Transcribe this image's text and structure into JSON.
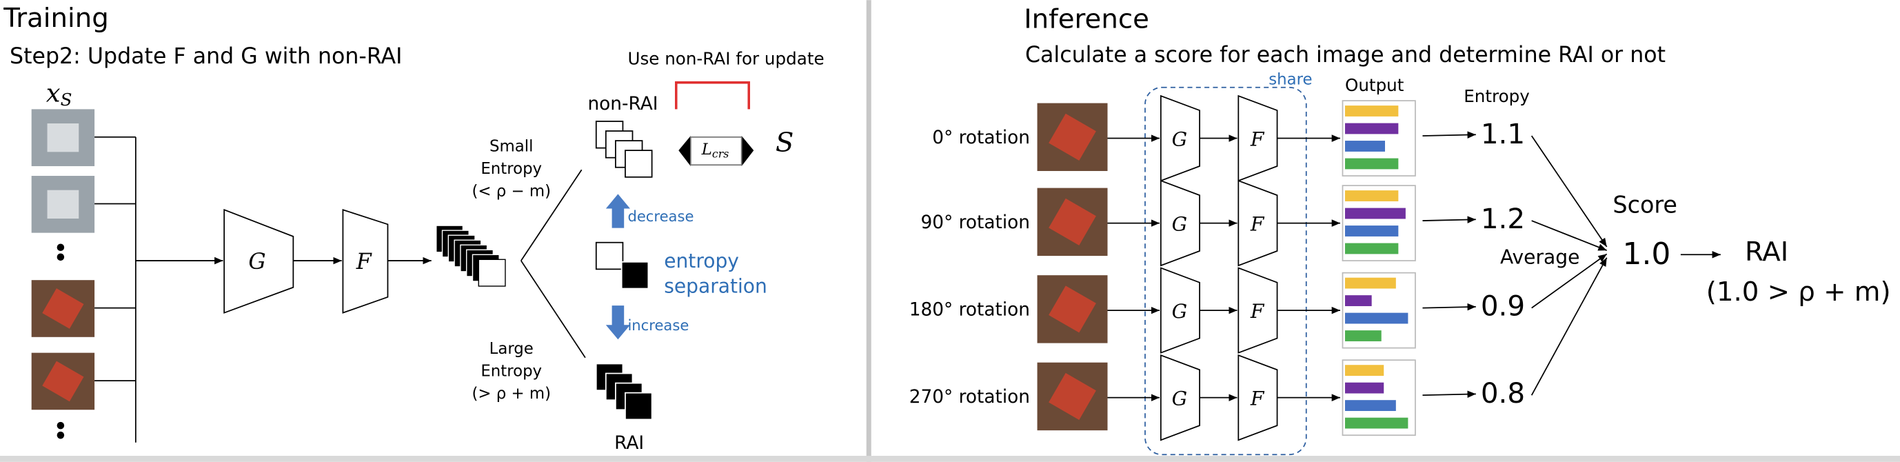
{
  "training": {
    "title": "Training",
    "step": "Step2: Update F and G with non-RAI",
    "update_note": "Use non-RAI for update",
    "input_label": {
      "main": "x",
      "sub": "S"
    },
    "network_g": "G",
    "network_f": "F",
    "small_entropy": [
      "Small",
      "Entropy",
      "(< ρ − m)"
    ],
    "large_entropy": [
      "Large",
      "Entropy",
      "(> ρ + m)"
    ],
    "non_rai_label": "non-RAI",
    "rai_label": "RAI",
    "decrease_label": "decrease",
    "increase_label": "increase",
    "separation_label": [
      "entropy",
      "separation"
    ],
    "loss_label": {
      "main": "L",
      "sub": "crs"
    },
    "target_label": "S"
  },
  "inference": {
    "title": "Inference",
    "subtitle": "Calculate a score for each image and determine RAI or not",
    "share_label": "share",
    "output_label": "Output",
    "entropy_label": "Entropy",
    "network_g": "G",
    "network_f": "F",
    "rows": [
      {
        "label": "0° rotation",
        "entropy": "1.1"
      },
      {
        "label": "90° rotation",
        "entropy": "1.2"
      },
      {
        "label": "180° rotation",
        "entropy": "0.9"
      },
      {
        "label": "270° rotation",
        "entropy": "0.8"
      }
    ],
    "score_label": "Score",
    "average_label": "Average",
    "score": "1.0",
    "result": "RAI",
    "condition": "(1.0 > ρ + m)"
  }
}
